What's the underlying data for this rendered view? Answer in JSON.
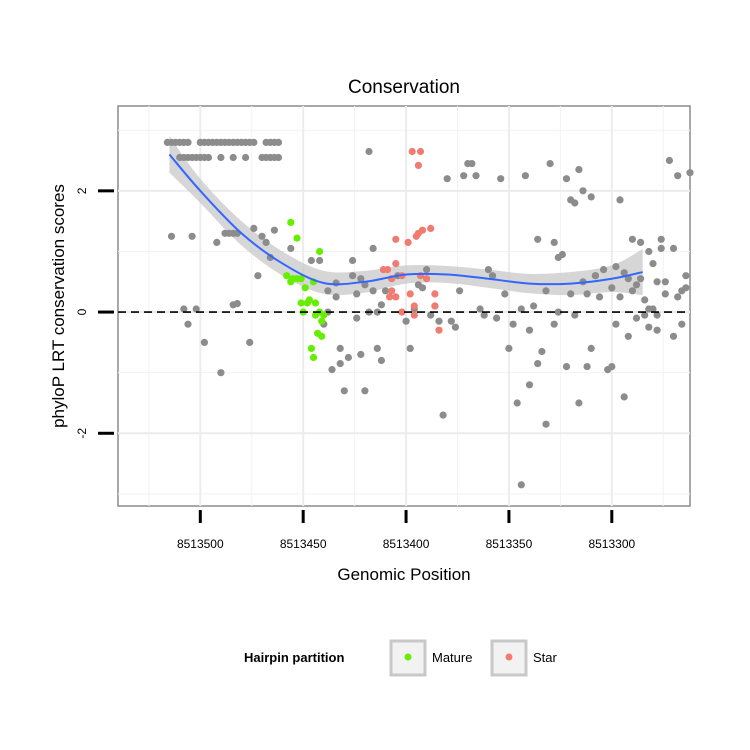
{
  "chart_data": {
    "type": "scatter",
    "title": "Conservation",
    "xlabel": "Genomic Position",
    "ylabel": "phyloP LRT conservation scores",
    "x_reversed": true,
    "xlim": [
      8513540,
      8513262
    ],
    "ylim": [
      -3.2,
      3.4
    ],
    "x_ticks": [
      8513500,
      8513450,
      8513400,
      8513350,
      8513300
    ],
    "y_ticks": [
      -2,
      0,
      2
    ],
    "grid": true,
    "reference_line": {
      "y": 0,
      "style": "dashed"
    },
    "legend": {
      "title": "Hairpin partition",
      "position": "bottom",
      "entries": [
        {
          "label": "Mature",
          "color": "#66ee00"
        },
        {
          "label": "Star",
          "color": "#f07b70"
        }
      ]
    },
    "colors": {
      "other": "#8c8c8c",
      "Mature": "#66ee00",
      "Star": "#f07b70",
      "smooth": "#3366ff",
      "band": "#c8c8c8"
    },
    "smooth": {
      "x": [
        8513515,
        8513500,
        8513480,
        8513460,
        8513440,
        8513420,
        8513400,
        8513380,
        8513360,
        8513340,
        8513320,
        8513300,
        8513285
      ],
      "y": [
        2.6,
        2.0,
        1.3,
        0.8,
        0.48,
        0.5,
        0.62,
        0.62,
        0.55,
        0.47,
        0.47,
        0.55,
        0.66
      ],
      "lower": [
        2.3,
        1.8,
        1.1,
        0.6,
        0.3,
        0.32,
        0.47,
        0.48,
        0.4,
        0.31,
        0.28,
        0.33,
        0.28
      ],
      "upper": [
        2.9,
        2.2,
        1.5,
        1.0,
        0.68,
        0.68,
        0.77,
        0.76,
        0.7,
        0.63,
        0.66,
        0.77,
        1.04
      ]
    },
    "series": [
      {
        "group": "other",
        "points": [
          [
            8513516,
            2.8
          ],
          [
            8513514,
            2.8
          ],
          [
            8513512,
            2.8
          ],
          [
            8513510,
            2.8
          ],
          [
            8513508,
            2.8
          ],
          [
            8513506,
            2.8
          ],
          [
            8513500,
            2.8
          ],
          [
            8513498,
            2.8
          ],
          [
            8513496,
            2.8
          ],
          [
            8513494,
            2.8
          ],
          [
            8513492,
            2.8
          ],
          [
            8513490,
            2.8
          ],
          [
            8513488,
            2.8
          ],
          [
            8513486,
            2.8
          ],
          [
            8513484,
            2.8
          ],
          [
            8513482,
            2.8
          ],
          [
            8513480,
            2.8
          ],
          [
            8513478,
            2.8
          ],
          [
            8513476,
            2.8
          ],
          [
            8513474,
            2.8
          ],
          [
            8513468,
            2.8
          ],
          [
            8513466,
            2.8
          ],
          [
            8513464,
            2.8
          ],
          [
            8513462,
            2.8
          ],
          [
            8513510,
            2.55
          ],
          [
            8513508,
            2.55
          ],
          [
            8513506,
            2.55
          ],
          [
            8513504,
            2.55
          ],
          [
            8513502,
            2.55
          ],
          [
            8513500,
            2.55
          ],
          [
            8513498,
            2.55
          ],
          [
            8513496,
            2.55
          ],
          [
            8513490,
            2.55
          ],
          [
            8513484,
            2.55
          ],
          [
            8513478,
            2.55
          ],
          [
            8513470,
            2.55
          ],
          [
            8513468,
            2.55
          ],
          [
            8513466,
            2.55
          ],
          [
            8513464,
            2.55
          ],
          [
            8513462,
            2.55
          ],
          [
            8513514,
            1.25
          ],
          [
            8513504,
            1.25
          ],
          [
            8513492,
            1.15
          ],
          [
            8513488,
            1.3
          ],
          [
            8513486,
            1.3
          ],
          [
            8513484,
            1.3
          ],
          [
            8513482,
            1.3
          ],
          [
            8513474,
            1.38
          ],
          [
            8513470,
            1.25
          ],
          [
            8513468,
            1.15
          ],
          [
            8513464,
            1.35
          ],
          [
            8513456,
            1.05
          ],
          [
            8513446,
            0.85
          ],
          [
            8513508,
            0.05
          ],
          [
            8513506,
            -0.2
          ],
          [
            8513502,
            0.05
          ],
          [
            8513498,
            -0.5
          ],
          [
            8513490,
            -1.0
          ],
          [
            8513484,
            0.12
          ],
          [
            8513482,
            0.14
          ],
          [
            8513476,
            -0.5
          ],
          [
            8513472,
            0.6
          ],
          [
            8513466,
            0.9
          ],
          [
            8513442,
            0.85
          ],
          [
            8513438,
            0.35
          ],
          [
            8513436,
            -0.95
          ],
          [
            8513434,
            0.48
          ],
          [
            8513432,
            -0.85
          ],
          [
            8513430,
            -1.3
          ],
          [
            8513428,
            -0.75
          ],
          [
            8513426,
            0.85
          ],
          [
            8513424,
            0.3
          ],
          [
            8513422,
            0.55
          ],
          [
            8513420,
            0.45
          ],
          [
            8513418,
            2.65
          ],
          [
            8513416,
            1.05
          ],
          [
            8513414,
            0.0
          ],
          [
            8513412,
            0.12
          ],
          [
            8513410,
            0.35
          ],
          [
            8513440,
            -0.2
          ],
          [
            8513438,
            0.0
          ],
          [
            8513434,
            0.25
          ],
          [
            8513432,
            -0.6
          ],
          [
            8513426,
            0.6
          ],
          [
            8513424,
            -0.1
          ],
          [
            8513422,
            -0.7
          ],
          [
            8513420,
            -1.3
          ],
          [
            8513418,
            0.0
          ],
          [
            8513416,
            0.35
          ],
          [
            8513414,
            -0.6
          ],
          [
            8513412,
            -0.8
          ],
          [
            8513404,
            0.6
          ],
          [
            8513400,
            -0.15
          ],
          [
            8513398,
            -0.6
          ],
          [
            8513396,
            0.05
          ],
          [
            8513394,
            0.45
          ],
          [
            8513392,
            0.4
          ],
          [
            8513390,
            0.7
          ],
          [
            8513388,
            -0.05
          ],
          [
            8513386,
            0.1
          ],
          [
            8513384,
            -0.15
          ],
          [
            8513382,
            -1.7
          ],
          [
            8513380,
            2.2
          ],
          [
            8513378,
            -0.15
          ],
          [
            8513376,
            -0.25
          ],
          [
            8513374,
            0.35
          ],
          [
            8513372,
            2.25
          ],
          [
            8513370,
            2.45
          ],
          [
            8513368,
            2.45
          ],
          [
            8513366,
            2.25
          ],
          [
            8513364,
            0.05
          ],
          [
            8513362,
            -0.05
          ],
          [
            8513360,
            0.7
          ],
          [
            8513358,
            0.6
          ],
          [
            8513356,
            -0.1
          ],
          [
            8513354,
            2.2
          ],
          [
            8513352,
            0.3
          ],
          [
            8513350,
            -0.6
          ],
          [
            8513348,
            -0.2
          ],
          [
            8513346,
            -1.5
          ],
          [
            8513344,
            0.05
          ],
          [
            8513342,
            2.25
          ],
          [
            8513340,
            -0.3
          ],
          [
            8513338,
            0.1
          ],
          [
            8513336,
            1.2
          ],
          [
            8513334,
            -0.65
          ],
          [
            8513332,
            -1.85
          ],
          [
            8513330,
            2.45
          ],
          [
            8513328,
            1.15
          ],
          [
            8513326,
            0.9
          ],
          [
            8513324,
            0.95
          ],
          [
            8513322,
            2.2
          ],
          [
            8513320,
            0.3
          ],
          [
            8513318,
            -0.05
          ],
          [
            8513316,
            -1.5
          ],
          [
            8513314,
            2.0
          ],
          [
            8513312,
            -0.9
          ],
          [
            8513310,
            1.9
          ],
          [
            8513308,
            0.6
          ],
          [
            8513306,
            0.25
          ],
          [
            8513344,
            -2.85
          ],
          [
            8513340,
            -1.2
          ],
          [
            8513336,
            -0.85
          ],
          [
            8513332,
            0.35
          ],
          [
            8513328,
            -0.2
          ],
          [
            8513326,
            0.0
          ],
          [
            8513322,
            -0.9
          ],
          [
            8513320,
            1.85
          ],
          [
            8513318,
            1.8
          ],
          [
            8513316,
            2.35
          ],
          [
            8513314,
            0.5
          ],
          [
            8513312,
            0.3
          ],
          [
            8513310,
            -0.6
          ],
          [
            8513308,
            0.6
          ],
          [
            8513304,
            0.7
          ],
          [
            8513302,
            -0.95
          ],
          [
            8513300,
            0.4
          ],
          [
            8513298,
            0.75
          ],
          [
            8513296,
            1.85
          ],
          [
            8513294,
            -1.4
          ],
          [
            8513292,
            0.55
          ],
          [
            8513290,
            1.2
          ],
          [
            8513288,
            0.45
          ],
          [
            8513286,
            1.15
          ],
          [
            8513284,
            -0.05
          ],
          [
            8513282,
            0.05
          ],
          [
            8513280,
            0.8
          ],
          [
            8513278,
            -0.3
          ],
          [
            8513276,
            1.2
          ],
          [
            8513274,
            0.5
          ],
          [
            8513300,
            -0.9
          ],
          [
            8513298,
            -0.2
          ],
          [
            8513296,
            0.25
          ],
          [
            8513294,
            0.65
          ],
          [
            8513292,
            -0.4
          ],
          [
            8513290,
            0.35
          ],
          [
            8513288,
            -0.1
          ],
          [
            8513286,
            0.55
          ],
          [
            8513284,
            0.2
          ],
          [
            8513282,
            -0.25
          ],
          [
            8513280,
            0.05
          ],
          [
            8513278,
            -0.05
          ],
          [
            8513276,
            1.05
          ],
          [
            8513274,
            0.3
          ],
          [
            8513272,
            2.5
          ],
          [
            8513270,
            -0.4
          ],
          [
            8513268,
            2.25
          ],
          [
            8513266,
            0.35
          ],
          [
            8513264,
            0.6
          ],
          [
            8513262,
            2.3
          ],
          [
            8513282,
            1.0
          ],
          [
            8513278,
            0.5
          ],
          [
            8513270,
            1.05
          ],
          [
            8513268,
            0.25
          ],
          [
            8513266,
            -0.2
          ],
          [
            8513264,
            0.4
          ]
        ]
      },
      {
        "group": "Mature",
        "points": [
          [
            8513456,
            1.48
          ],
          [
            8513453,
            1.22
          ],
          [
            8513442,
            1.0
          ],
          [
            8513458,
            0.6
          ],
          [
            8513456,
            0.5
          ],
          [
            8513455,
            0.55
          ],
          [
            8513453,
            0.55
          ],
          [
            8513451,
            0.55
          ],
          [
            8513448,
            0.15
          ],
          [
            8513449,
            0.4
          ],
          [
            8513451,
            0.15
          ],
          [
            8513450,
            0.0
          ],
          [
            8513447,
            0.2
          ],
          [
            8513445,
            0.5
          ],
          [
            8513444,
            0.15
          ],
          [
            8513444,
            -0.05
          ],
          [
            8513442,
            0.0
          ],
          [
            8513441,
            -0.15
          ],
          [
            8513446,
            -0.6
          ],
          [
            8513445,
            -0.75
          ],
          [
            8513443,
            -0.35
          ],
          [
            8513441,
            -0.4
          ],
          [
            8513440,
            -0.05
          ]
        ]
      },
      {
        "group": "Star",
        "points": [
          [
            8513397,
            2.65
          ],
          [
            8513393,
            2.65
          ],
          [
            8513394,
            2.42
          ],
          [
            8513395,
            1.25
          ],
          [
            8513394,
            1.3
          ],
          [
            8513392,
            1.35
          ],
          [
            8513388,
            1.38
          ],
          [
            8513399,
            1.15
          ],
          [
            8513405,
            1.2
          ],
          [
            8513407,
            0.55
          ],
          [
            8513405,
            0.8
          ],
          [
            8513402,
            0.6
          ],
          [
            8513411,
            0.7
          ],
          [
            8513409,
            0.7
          ],
          [
            8513408,
            0.25
          ],
          [
            8513407,
            0.35
          ],
          [
            8513405,
            0.25
          ],
          [
            8513402,
            0.0
          ],
          [
            8513398,
            0.3
          ],
          [
            8513396,
            0.1
          ],
          [
            8513396,
            -0.05
          ],
          [
            8513393,
            0.6
          ],
          [
            8513390,
            0.55
          ],
          [
            8513386,
            0.3
          ],
          [
            8513384,
            -0.3
          ],
          [
            8513386,
            0.1
          ]
        ]
      }
    ]
  }
}
